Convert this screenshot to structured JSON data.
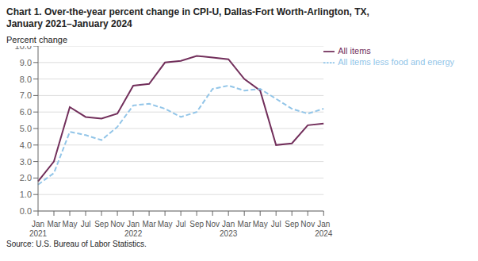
{
  "chart_data": {
    "type": "line",
    "title": "Chart 1. Over-the-year percent change in CPI-U, Dallas-Fort Worth-Arlington, TX,\nJanuary 2021–January 2024",
    "ylabel": "Percent change",
    "source": "Source: U.S. Bureau of Labor Statistics.",
    "categories": [
      "Jan\n2021",
      "Mar",
      "May",
      "Jul",
      "Sep",
      "Nov",
      "Jan\n2022",
      "Mar",
      "May",
      "Jul",
      "Sep",
      "Nov",
      "Jan\n2023",
      "Mar",
      "May",
      "Jul",
      "Sep",
      "Nov",
      "Jan\n2024"
    ],
    "series": [
      {
        "name": "All items",
        "color": "#722F5B",
        "line_style": "solid",
        "values": [
          1.8,
          3.0,
          6.3,
          5.7,
          5.6,
          5.9,
          7.6,
          7.7,
          9.0,
          9.1,
          9.4,
          9.3,
          9.2,
          8.0,
          7.3,
          4.0,
          4.1,
          5.2,
          5.3
        ]
      },
      {
        "name": "All items less food and energy",
        "color": "#92C5E8",
        "line_style": "dashed",
        "values": [
          1.6,
          2.3,
          4.8,
          4.6,
          4.3,
          5.1,
          6.4,
          6.5,
          6.2,
          5.7,
          6.0,
          7.4,
          7.6,
          7.3,
          7.4,
          6.8,
          6.2,
          5.9,
          6.2
        ]
      }
    ],
    "ylim": [
      0.0,
      10.0
    ],
    "yticks": [
      {
        "value": 0,
        "label": "0.0"
      },
      {
        "value": 1,
        "label": "1.0"
      },
      {
        "value": 2,
        "label": "2.0"
      },
      {
        "value": 3,
        "label": "3.0"
      },
      {
        "value": 4,
        "label": "4.0"
      },
      {
        "value": 5,
        "label": "5.0"
      },
      {
        "value": 6,
        "label": "6.0"
      },
      {
        "value": 7,
        "label": "7.0"
      },
      {
        "value": 8,
        "label": "8.0"
      },
      {
        "value": 9,
        "label": "9.0"
      },
      {
        "value": 10,
        "label": "10.0"
      }
    ],
    "grid": true,
    "legend": "top-right"
  }
}
